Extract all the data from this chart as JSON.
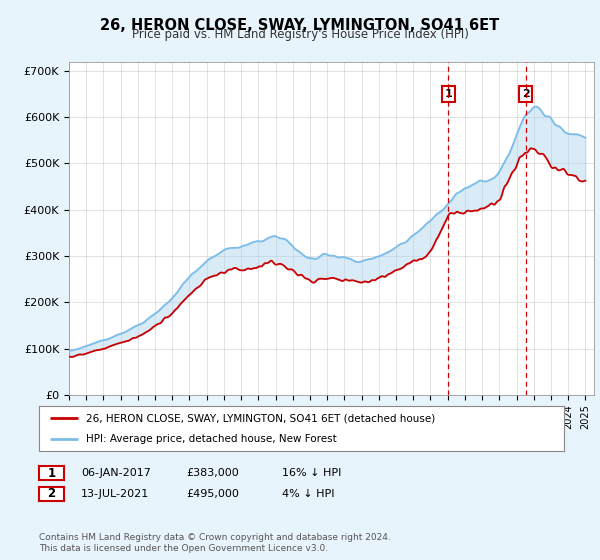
{
  "title": "26, HERON CLOSE, SWAY, LYMINGTON, SO41 6ET",
  "subtitle": "Price paid vs. HM Land Registry's House Price Index (HPI)",
  "ylabel_ticks": [
    "£0",
    "£100K",
    "£200K",
    "£300K",
    "£400K",
    "£500K",
    "£600K",
    "£700K"
  ],
  "ylim": [
    0,
    720000
  ],
  "xlim_start": 1995.0,
  "xlim_end": 2025.5,
  "hpi_color": "#7bbde8",
  "hpi_fill_color": "#aed4f0",
  "price_color": "#cc0000",
  "marker1_date": 2017.04,
  "marker1_price": 383000,
  "marker1_label": "1",
  "marker1_text": "06-JAN-2017",
  "marker1_price_str": "£383,000",
  "marker1_hpi_str": "16% ↓ HPI",
  "marker2_date": 2021.54,
  "marker2_price": 495000,
  "marker2_label": "2",
  "marker2_text": "13-JUL-2021",
  "marker2_price_str": "£495,000",
  "marker2_hpi_str": "4% ↓ HPI",
  "legend_line1": "26, HERON CLOSE, SWAY, LYMINGTON, SO41 6ET (detached house)",
  "legend_line2": "HPI: Average price, detached house, New Forest",
  "footer": "Contains HM Land Registry data © Crown copyright and database right 2024.\nThis data is licensed under the Open Government Licence v3.0.",
  "background_color": "#e8f4fb",
  "plot_bg_color": "#ffffff",
  "grid_color": "#cccccc",
  "hpi_years": [
    1995,
    1996,
    1997,
    1998,
    1999,
    2000,
    2001,
    2002,
    2003,
    2004,
    2005,
    2006,
    2007,
    2008,
    2009,
    2010,
    2011,
    2012,
    2013,
    2014,
    2015,
    2016,
    2017,
    2018,
    2019,
    2020,
    2021,
    2022,
    2023,
    2024,
    2025
  ],
  "hpi_vals": [
    95000,
    105000,
    118000,
    132000,
    150000,
    175000,
    210000,
    255000,
    290000,
    310000,
    320000,
    330000,
    340000,
    320000,
    295000,
    300000,
    295000,
    290000,
    300000,
    320000,
    345000,
    375000,
    410000,
    445000,
    460000,
    480000,
    560000,
    620000,
    590000,
    570000,
    555000
  ],
  "price_years": [
    1995,
    1996,
    1997,
    1998,
    1999,
    2000,
    2001,
    2002,
    2003,
    2004,
    2005,
    2006,
    2007,
    2008,
    2009,
    2010,
    2011,
    2012,
    2013,
    2014,
    2015,
    2016,
    2017,
    2018,
    2019,
    2020,
    2021,
    2022,
    2023,
    2024,
    2025
  ],
  "price_vals": [
    82000,
    90000,
    100000,
    112000,
    126000,
    148000,
    178000,
    215000,
    248000,
    265000,
    272000,
    278000,
    285000,
    268000,
    248000,
    252000,
    248000,
    244000,
    252000,
    268000,
    288000,
    310000,
    383000,
    395000,
    405000,
    420000,
    495000,
    530000,
    500000,
    480000,
    465000
  ]
}
